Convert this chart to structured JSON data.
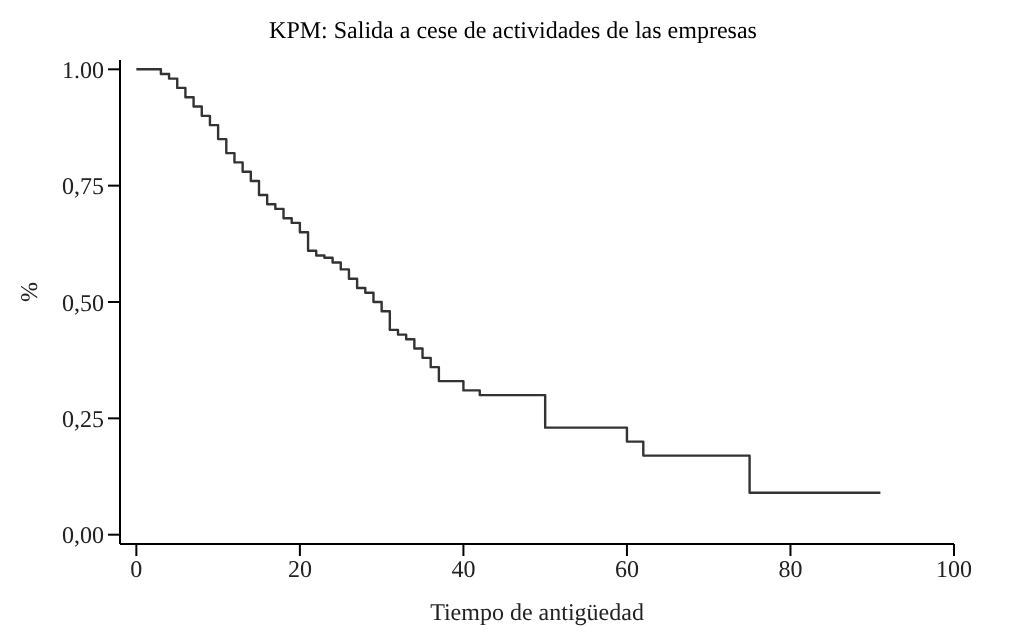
{
  "chart_data": {
    "type": "step",
    "title": "KPM: Salida a cese de actividades de las empresas",
    "xlabel": "Tiempo de antigüedad",
    "ylabel": "%",
    "x": [
      0,
      3,
      4,
      5,
      6,
      7,
      8,
      9,
      10,
      11,
      12,
      13,
      14,
      15,
      16,
      17,
      18,
      19,
      20,
      21,
      22,
      23,
      24,
      25,
      26,
      27,
      28,
      29,
      30,
      31,
      32,
      33,
      34,
      35,
      36,
      37,
      40,
      42,
      50,
      60,
      62,
      75,
      91
    ],
    "series": [
      {
        "color": "#333333",
        "values": [
          1.0,
          0.99,
          0.98,
          0.96,
          0.94,
          0.92,
          0.9,
          0.88,
          0.85,
          0.82,
          0.8,
          0.78,
          0.76,
          0.73,
          0.71,
          0.7,
          0.68,
          0.67,
          0.65,
          0.61,
          0.6,
          0.595,
          0.585,
          0.57,
          0.55,
          0.53,
          0.52,
          0.5,
          0.48,
          0.44,
          0.43,
          0.42,
          0.4,
          0.38,
          0.36,
          0.33,
          0.31,
          0.3,
          0.23,
          0.2,
          0.17,
          0.09,
          0.09
        ]
      }
    ],
    "xlim": [
      -2,
      100
    ],
    "xticks": [
      0,
      20,
      40,
      60,
      80,
      100
    ],
    "ylim": [
      -0.02,
      1.02
    ],
    "yticks": [
      {
        "value": 0,
        "label": "0,00"
      },
      {
        "value": 0.25,
        "label": "0,25"
      },
      {
        "value": 0.5,
        "label": "0,50"
      },
      {
        "value": 0.75,
        "label": "0,75"
      },
      {
        "value": 1,
        "label": "1.00"
      }
    ],
    "grid": false,
    "legend": false,
    "marker": "none",
    "line_style": "solid"
  }
}
